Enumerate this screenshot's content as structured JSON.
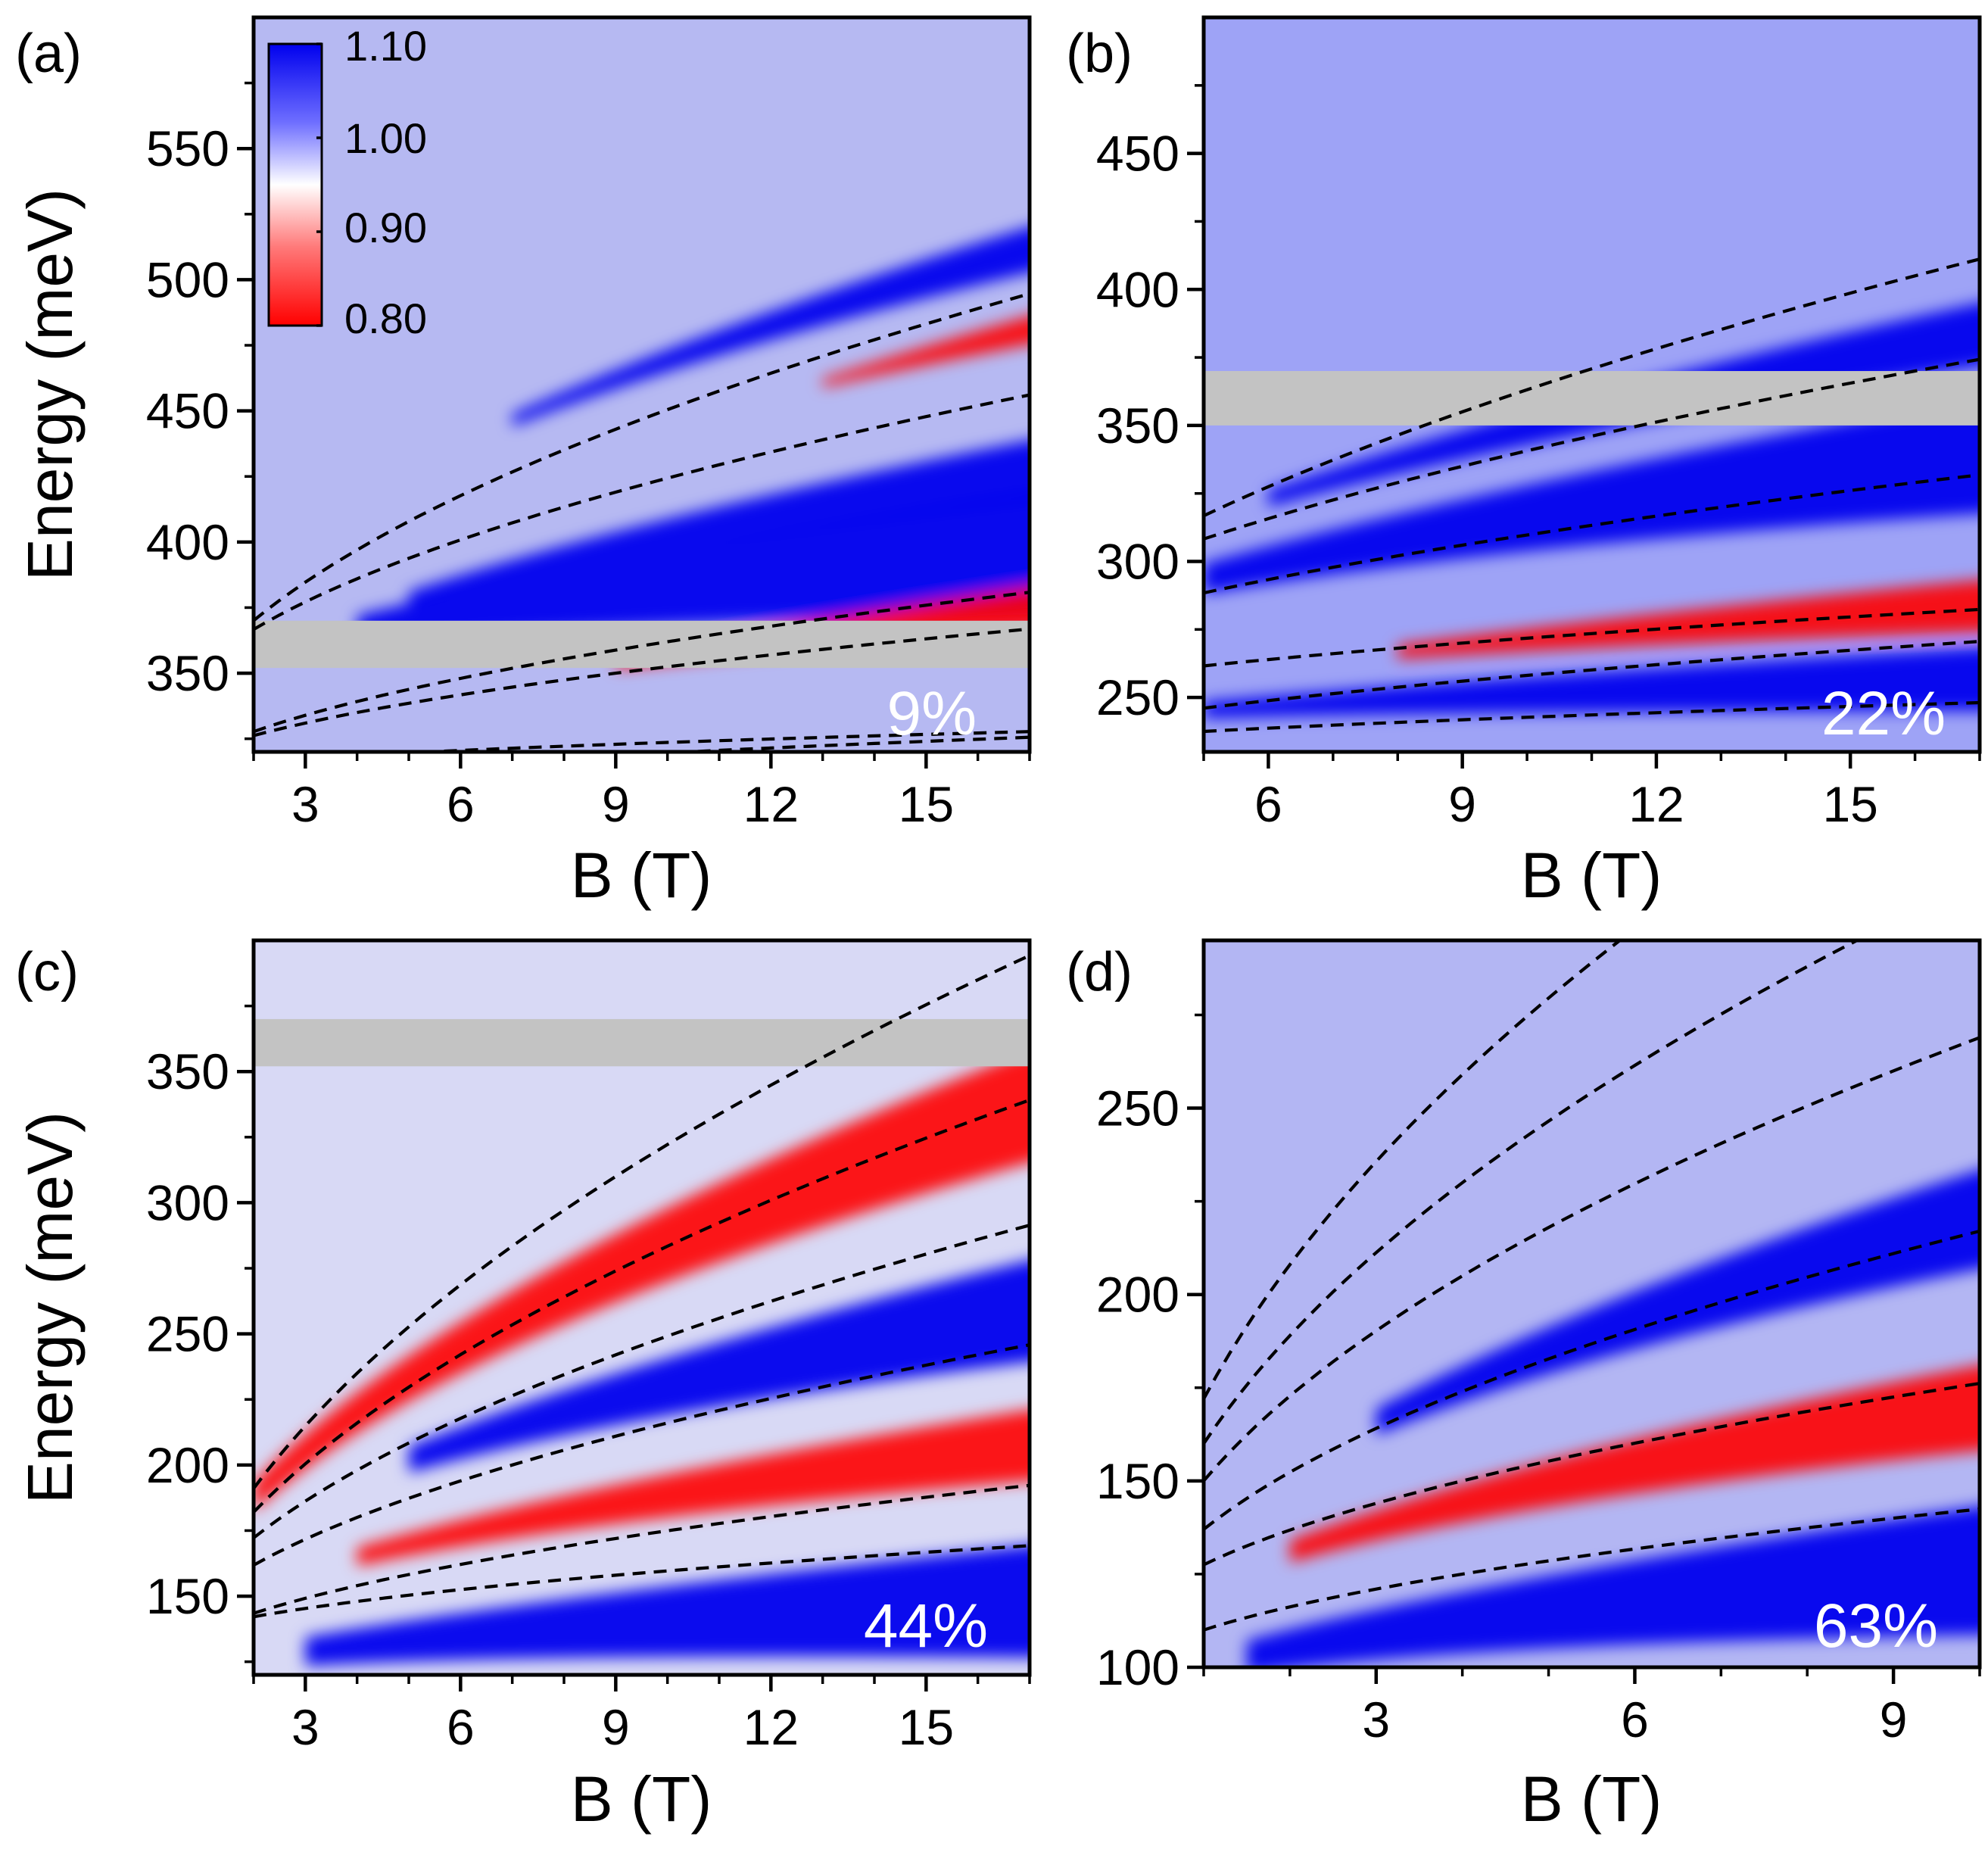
{
  "figure": {
    "colorbar": {
      "labels": [
        "1.10",
        "1.00",
        "0.90",
        "0.80"
      ],
      "values": [
        1.1,
        1.0,
        0.9,
        0.8
      ]
    },
    "colors": {
      "blue": "#0000ee",
      "white": "#ffffff",
      "red": "#ff0000",
      "band": "#c3c3c3"
    }
  },
  "chart_data": [
    {
      "id": "a",
      "type": "heatmap",
      "panel_label": "(a)",
      "percent_label": "9%",
      "xlabel": "B (T)",
      "ylabel": "Energy (meV)",
      "xlim": [
        2,
        17
      ],
      "ylim": [
        320,
        600
      ],
      "xticks": [
        3,
        6,
        9,
        12,
        15
      ],
      "xtick_labels": [
        "3",
        "6",
        "9",
        "12",
        "15"
      ],
      "yticks": [
        350,
        400,
        450,
        500,
        550
      ],
      "ytick_labels": [
        "350",
        "400",
        "450",
        "500",
        "550"
      ],
      "gray_band": [
        352,
        370
      ],
      "fan_lines": [
        {
          "e0": 300,
          "k": 19.6
        },
        {
          "e0": 305,
          "k": 15.0
        },
        {
          "e0": 300,
          "k": 6.2
        },
        {
          "e0": 310,
          "k": 4.3
        },
        {
          "e0": 320,
          "k": 33.0
        },
        {
          "e0": 305,
          "k": 46.0
        }
      ],
      "features": [
        {
          "tone": "blue",
          "e0": 338,
          "k": 14,
          "w": 24,
          "b0": 4
        },
        {
          "tone": "red",
          "e0": 300,
          "k": 18,
          "w": 9,
          "b0": 9
        },
        {
          "tone": "blue",
          "e0": 320,
          "k": 26,
          "w": 12,
          "b0": 5
        },
        {
          "tone": "red",
          "e0": 320,
          "k": 39,
          "w": 6,
          "b0": 13
        },
        {
          "tone": "blue",
          "e0": 330,
          "k": 44,
          "w": 9,
          "b0": 7
        }
      ]
    },
    {
      "id": "b",
      "type": "heatmap",
      "panel_label": "(b)",
      "percent_label": "22%",
      "xlabel": "B (T)",
      "ylabel": "",
      "xlim": [
        5,
        17
      ],
      "ylim": [
        230,
        500
      ],
      "xticks": [
        6,
        9,
        12,
        15
      ],
      "xtick_labels": [
        "6",
        "9",
        "12",
        "15"
      ],
      "yticks": [
        250,
        300,
        350,
        400,
        450
      ],
      "ytick_labels": [
        "250",
        "300",
        "350",
        "400",
        "450"
      ],
      "gray_band": [
        350,
        370
      ],
      "fan_lines": [
        {
          "e0": 217,
          "k": 13.0
        },
        {
          "e0": 225,
          "k": 5.6
        },
        {
          "e0": 237,
          "k": 11.0
        },
        {
          "e0": 237,
          "k": 23.0
        },
        {
          "e0": 230,
          "k": 35.0
        },
        {
          "e0": 205,
          "k": 50.0
        }
      ],
      "features": [
        {
          "tone": "red",
          "e0": 230,
          "k": 13,
          "w": 10,
          "b0": 8
        },
        {
          "tone": "blue",
          "e0": 240,
          "k": 24,
          "w": 22,
          "b0": 5
        },
        {
          "tone": "blue",
          "e0": 232,
          "k": 6,
          "w": 12,
          "b0": 5
        },
        {
          "tone": "blue",
          "e0": 235,
          "k": 36,
          "w": 12,
          "b0": 6
        }
      ]
    },
    {
      "id": "c",
      "type": "heatmap",
      "panel_label": "(c)",
      "percent_label": "44%",
      "xlabel": "B (T)",
      "ylabel": "Energy (meV)",
      "xlim": [
        2,
        17
      ],
      "ylim": [
        120,
        400
      ],
      "xticks": [
        3,
        6,
        9,
        12,
        15
      ],
      "xtick_labels": [
        "3",
        "6",
        "9",
        "12",
        "15"
      ],
      "yticks": [
        150,
        200,
        250,
        300,
        350
      ],
      "ytick_labels": [
        "150",
        "200",
        "250",
        "300",
        "350"
      ],
      "gray_band": [
        352,
        370
      ],
      "fan_lines": [
        {
          "e0": 118,
          "k": 18.0
        },
        {
          "e0": 128,
          "k": 10.0
        },
        {
          "e0": 118,
          "k": 31.0
        },
        {
          "e0": 110,
          "k": 44.0
        },
        {
          "e0": 100,
          "k": 58.0
        },
        {
          "e0": 85,
          "k": 75.0
        }
      ],
      "features": [
        {
          "tone": "blue",
          "e0": 115,
          "k": 8,
          "w": 22,
          "b0": 3
        },
        {
          "tone": "red",
          "e0": 125,
          "k": 20,
          "w": 14,
          "b0": 4
        },
        {
          "tone": "blue",
          "e0": 135,
          "k": 30,
          "w": 20,
          "b0": 5
        },
        {
          "tone": "red",
          "e0": 110,
          "k": 55,
          "w": 22,
          "b0": 2
        }
      ]
    },
    {
      "id": "d",
      "type": "heatmap",
      "panel_label": "(d)",
      "percent_label": "63%",
      "xlabel": "B (T)",
      "ylabel": "",
      "xlim": [
        1,
        10
      ],
      "ylim": [
        100,
        295
      ],
      "xticks": [
        3,
        6,
        9
      ],
      "xtick_labels": [
        "3",
        "6",
        "9"
      ],
      "yticks": [
        100,
        150,
        200,
        250
      ],
      "ytick_labels": [
        "100",
        "150",
        "200",
        "250"
      ],
      "gray_band": null,
      "fan_lines": [
        {
          "e0": 95,
          "k": 15.0
        },
        {
          "e0": 105,
          "k": 22.5
        },
        {
          "e0": 100,
          "k": 37.0
        },
        {
          "e0": 95,
          "k": 55.0
        },
        {
          "e0": 90,
          "k": 70.0
        },
        {
          "e0": 85,
          "k": 87.0
        }
      ],
      "features": [
        {
          "tone": "blue",
          "e0": 88,
          "k": 12,
          "w": 18,
          "b0": 1.5
        },
        {
          "tone": "red",
          "e0": 100,
          "k": 22,
          "w": 12,
          "b0": 2
        },
        {
          "tone": "blue",
          "e0": 100,
          "k": 38,
          "w": 14,
          "b0": 3
        }
      ]
    }
  ]
}
